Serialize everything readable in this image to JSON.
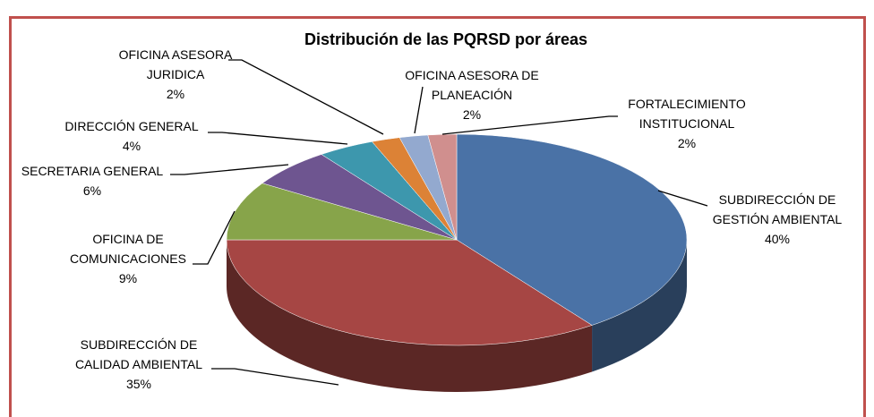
{
  "chart_data": {
    "type": "pie",
    "title": "Distribución de las PQRSD por áreas",
    "categories": [
      "SUBDIRECCIÓN DE GESTIÓN AMBIENTAL",
      "SUBDIRECCIÓN DE CALIDAD AMBIENTAL",
      "OFICINA DE COMUNICACIONES",
      "SECRETARIA GENERAL",
      "DIRECCIÓN GENERAL",
      "OFICINA ASESORA JURIDICA",
      "OFICINA ASESORA DE PLANEACIÓN",
      "FORTALECIMIENTO INSTITUCIONAL"
    ],
    "values": [
      40,
      35,
      9,
      6,
      4,
      2,
      2,
      2
    ],
    "value_labels": [
      "40%",
      "35%",
      "9%",
      "6%",
      "4%",
      "2%",
      "2%",
      "2%"
    ],
    "colors": [
      "#4a72a6",
      "#a64644",
      "#87a44a",
      "#6e5590",
      "#3d97ad",
      "#dc8236",
      "#93a9cf",
      "#d08f8e"
    ]
  }
}
